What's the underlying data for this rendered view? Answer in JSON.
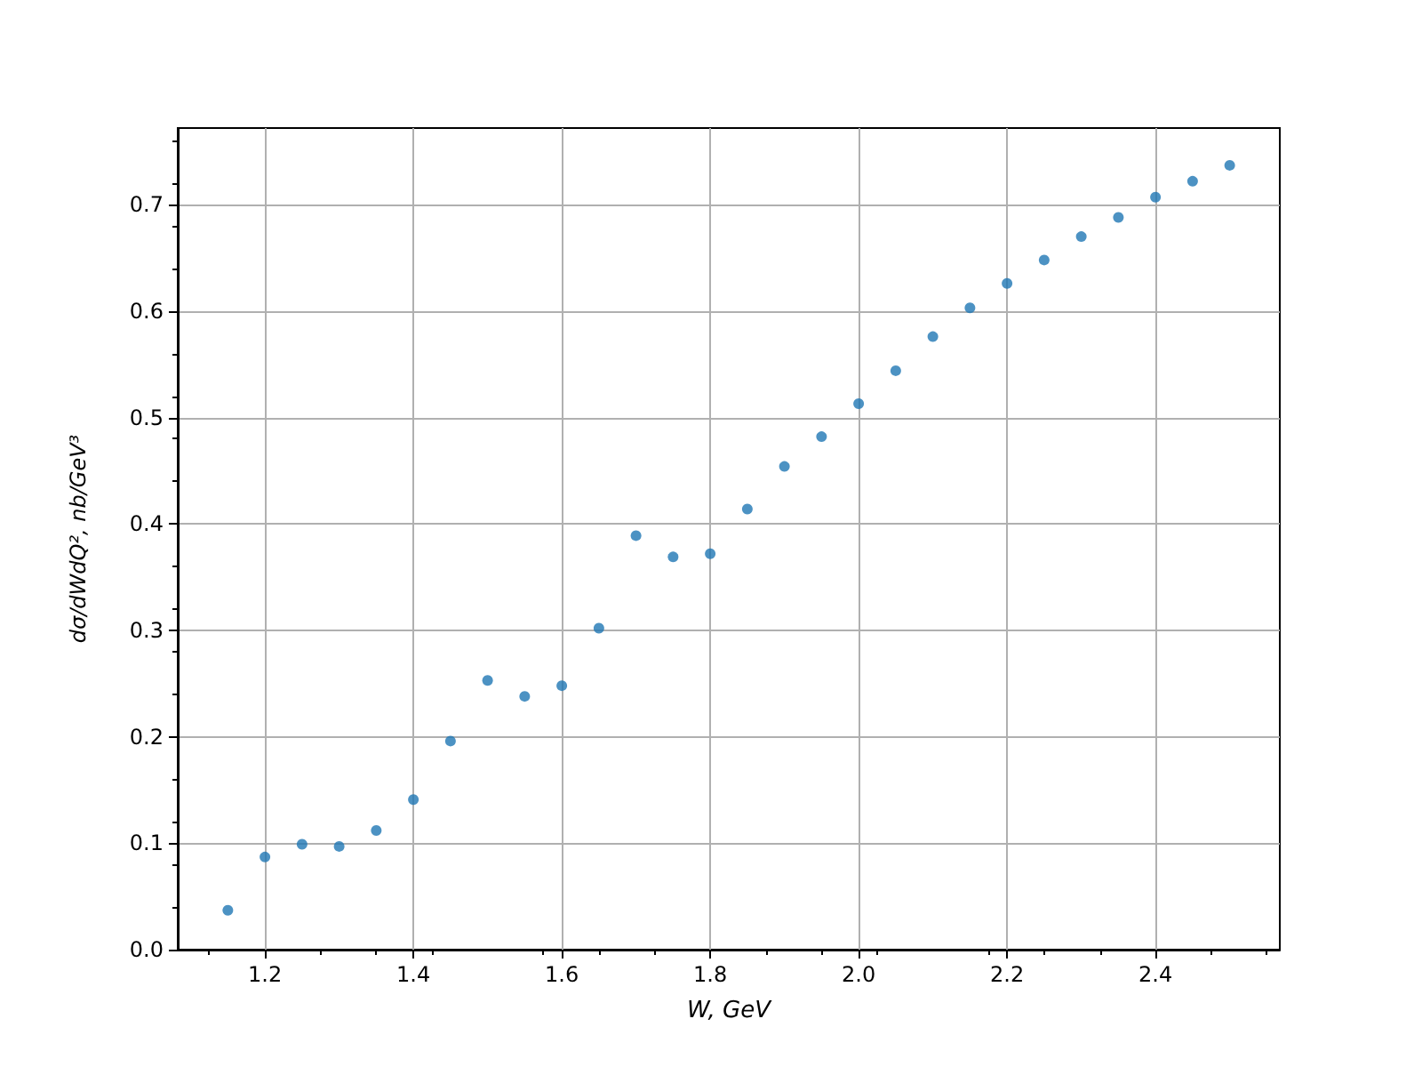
{
  "chart_data": {
    "type": "scatter",
    "xlabel": "W, GeV",
    "ylabel": "dσ/dWdQ², nb/GeV³",
    "x": [
      1.15,
      1.2,
      1.25,
      1.3,
      1.35,
      1.4,
      1.45,
      1.5,
      1.55,
      1.6,
      1.65,
      1.7,
      1.75,
      1.8,
      1.85,
      1.9,
      1.95,
      2.0,
      2.05,
      2.1,
      2.15,
      2.2,
      2.25,
      2.3,
      2.35,
      2.4,
      2.45,
      2.5
    ],
    "series": [
      {
        "color": "#1f77b4",
        "values": [
          0.037,
          0.087,
          0.099,
          0.097,
          0.112,
          0.141,
          0.196,
          0.253,
          0.238,
          0.248,
          0.302,
          0.389,
          0.369,
          0.372,
          0.414,
          0.454,
          0.482,
          0.513,
          0.544,
          0.576,
          0.603,
          0.626,
          0.648,
          0.67,
          0.688,
          0.707,
          0.722,
          0.737
        ]
      }
    ],
    "xlim": [
      1.0825,
      2.5675
    ],
    "xticks": [
      1.2,
      1.4,
      1.6,
      1.8,
      {
        "value": 2,
        "label": "2.0"
      },
      2.2,
      2.4
    ],
    "ylim": [
      0,
      0.772
    ],
    "yticks": [
      {
        "value": 0,
        "label": "0.0"
      },
      0.1,
      0.2,
      0.3,
      0.4,
      0.5,
      0.6,
      0.7
    ],
    "grid": true,
    "marker": "circle"
  }
}
